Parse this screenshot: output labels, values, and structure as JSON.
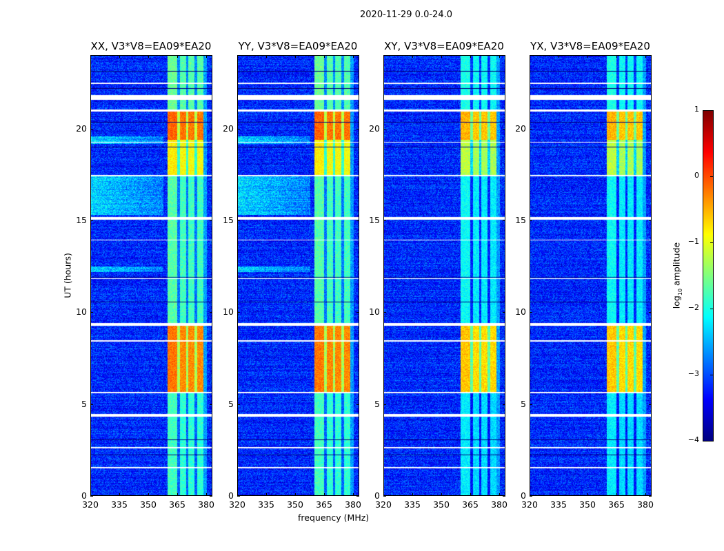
{
  "chart_data": {
    "type": "heatmap",
    "title": "2020-11-29 0.0-24.0",
    "xlabel": "frequency (MHz)",
    "ylabel": "UT (hours)",
    "xlim": [
      320,
      383.2
    ],
    "ylim": [
      0,
      24
    ],
    "xticks": [
      320,
      335,
      350,
      365,
      380
    ],
    "yticks": [
      0,
      5,
      10,
      15,
      20
    ],
    "panels": [
      {
        "title": "XX, V3*V8=EA09*EA20",
        "gain": 1.0,
        "left_glow": true
      },
      {
        "title": "YY, V3*V8=EA09*EA20",
        "gain": 1.0,
        "left_glow": true
      },
      {
        "title": "XY, V3*V8=EA09*EA20",
        "gain": 0.75,
        "left_glow": false
      },
      {
        "title": "YX, V3*V8=EA09*EA20",
        "gain": 0.75,
        "left_glow": false
      }
    ],
    "colorbar": {
      "label_main": "log",
      "label_sub": "10",
      "label_tail": " amplitude",
      "range": [
        -4,
        1
      ],
      "ticks": [
        1,
        0,
        -1,
        -2,
        -3,
        -4
      ],
      "tick_labels": [
        "1",
        "0",
        "−1",
        "−2",
        "−3",
        "−4"
      ],
      "colormap": "jet"
    },
    "background_log_amplitude": -3.2,
    "rfi_band_mhz": [
      360,
      379
    ],
    "rfi_channel_gaps_mhz": [
      365.8,
      370.4,
      374.8
    ],
    "rfi_levels": [
      {
        "hours": [
          0,
          5.6
        ],
        "level": -1.9
      },
      {
        "hours": [
          5.6,
          9.3
        ],
        "level": -0.3
      },
      {
        "hours": [
          9.3,
          17.4
        ],
        "level": -1.8
      },
      {
        "hours": [
          17.4,
          19.4
        ],
        "level": -0.9
      },
      {
        "hours": [
          19.4,
          21.0
        ],
        "level": -0.2
      },
      {
        "hours": [
          21.0,
          24.0
        ],
        "level": -1.7
      }
    ],
    "elevated_background_hours": [
      [
        15.3,
        17.4
      ],
      [
        19.2,
        19.6
      ],
      [
        12.2,
        12.5
      ]
    ],
    "flagged_rows_hours": [
      [
        22.45,
        22.55
      ],
      [
        21.6,
        21.85
      ],
      [
        20.95,
        21.05
      ],
      [
        19.25,
        19.3
      ],
      [
        17.4,
        17.5
      ],
      [
        15.05,
        15.2
      ],
      [
        9.25,
        9.4
      ],
      [
        8.4,
        8.45
      ],
      [
        5.55,
        5.65
      ],
      [
        4.3,
        4.45
      ],
      [
        2.55,
        2.65
      ],
      [
        1.45,
        1.55
      ],
      [
        13.9,
        13.95
      ],
      [
        11.8,
        11.85
      ]
    ],
    "gap_rows_hours": [
      [
        23.12,
        23.16
      ],
      [
        22.2,
        22.24
      ],
      [
        20.35,
        20.38
      ],
      [
        19.0,
        19.03
      ],
      [
        17.55,
        17.58
      ],
      [
        11.9,
        11.93
      ],
      [
        10.55,
        10.58
      ],
      [
        3.6,
        3.63
      ],
      [
        3.0,
        3.03
      ],
      [
        2.2,
        2.23
      ]
    ]
  }
}
